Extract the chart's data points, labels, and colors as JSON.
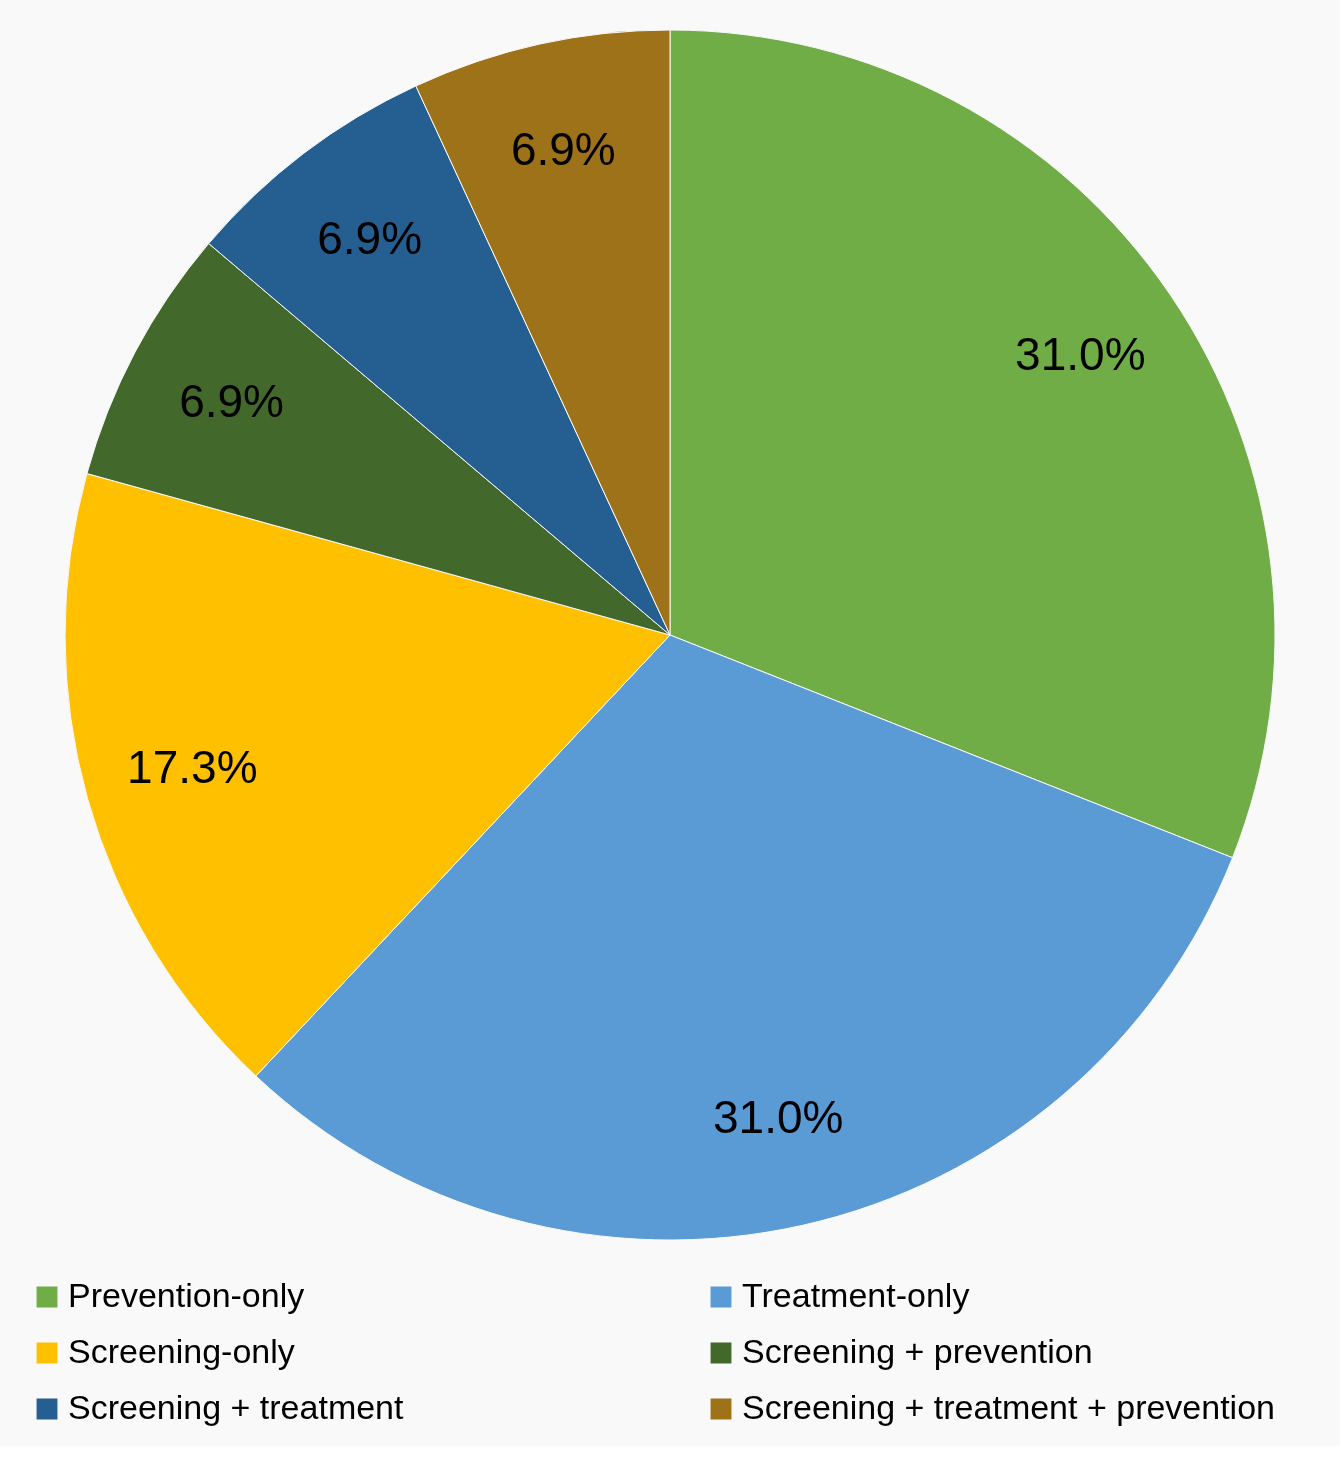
{
  "chart_data": {
    "type": "pie",
    "categories": [
      "Prevention-only",
      "Treatment-only",
      "Screening-only",
      "Screening + prevention",
      "Screening + treatment",
      "Screening + treatment + prevention"
    ],
    "values": [
      31.0,
      31.0,
      17.3,
      6.9,
      6.9,
      6.9
    ],
    "colors": [
      "#70ad47",
      "#5b9bd5",
      "#ffc000",
      "#43682b",
      "#255e91",
      "#9e7219"
    ],
    "value_labels": [
      "31.0%",
      "31.0%",
      "17.3%",
      "6.9%",
      "6.9%",
      "6.9%"
    ],
    "legend": "bottom"
  }
}
